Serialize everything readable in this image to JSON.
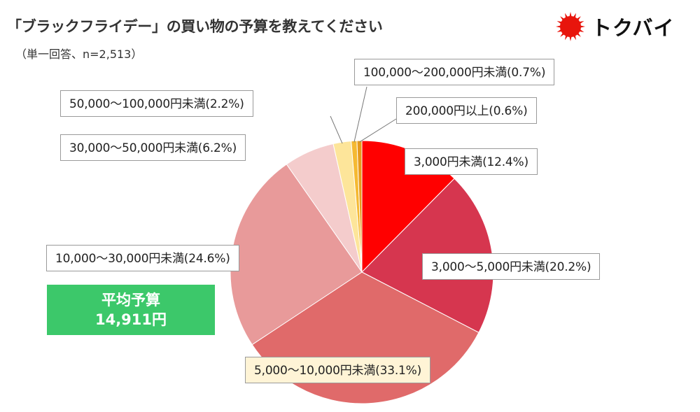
{
  "title": "「ブラックフライデー」の買い物の予算を教えてください",
  "subtitle": "（単一回答、n=2,513）",
  "logo": {
    "text": "トクバイ",
    "icon": "red-sun-icon",
    "color": "#e8150c"
  },
  "average": {
    "label": "平均予算",
    "value": "14,911円",
    "color": "#3cc86a"
  },
  "chart_data": {
    "type": "pie",
    "start": "12 o'clock",
    "direction": "clockwise",
    "slices": [
      {
        "label": "3,000円未満(12.4%)",
        "value": 12.4,
        "color": "#ff0000"
      },
      {
        "label": "3,000〜5,000円未満(20.2%)",
        "value": 20.2,
        "color": "#d6364f"
      },
      {
        "label": "5,000〜10,000円未満(33.1%)",
        "value": 33.1,
        "color": "#e06a6a"
      },
      {
        "label": "10,000〜30,000円未満(24.6%)",
        "value": 24.6,
        "color": "#e89a9a"
      },
      {
        "label": "30,000〜50,000円未満(6.2%)",
        "value": 6.2,
        "color": "#f4cccc"
      },
      {
        "label": "50,000〜100,000円未満(2.2%)",
        "value": 2.2,
        "color": "#fde59a"
      },
      {
        "label": "100,000〜200,000円未満(0.7%)",
        "value": 0.7,
        "color": "#f5b932"
      },
      {
        "label": "200,000円以上(0.6%)",
        "value": 0.6,
        "color": "#e69a1c"
      }
    ]
  }
}
